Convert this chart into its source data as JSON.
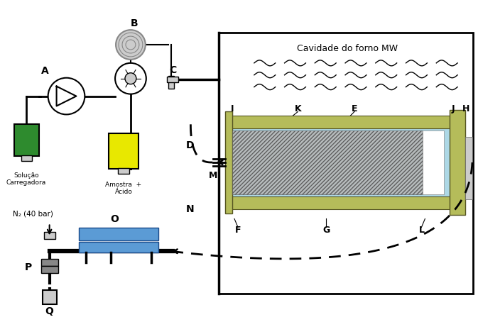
{
  "bg_color": "#ffffff",
  "border_color": "#000000",
  "olive_color": "#b5bc5a",
  "blue_light": "#add8e6",
  "blue_medium": "#5b9bd5",
  "green_color": "#2e8b2e",
  "yellow_color": "#e8e800",
  "gray_color": "#888888",
  "gray_light": "#cccccc",
  "mw_cavity_label": "Cavidade do forno MW",
  "label_A": "A",
  "label_B": "B",
  "label_C": "C",
  "label_D": "D",
  "label_E": "E",
  "label_F": "F",
  "label_G": "G",
  "label_H": "H",
  "label_I": "I",
  "label_J": "J",
  "label_K": "K",
  "label_L": "L",
  "label_M": "M",
  "label_N": "N",
  "label_O": "O",
  "label_P": "P",
  "label_Q": "Q",
  "text_solucao": "Solução\nCarregadora",
  "text_amostra": "Amostra  +\nÁcido",
  "text_n2": "N₂ (40 bar)"
}
